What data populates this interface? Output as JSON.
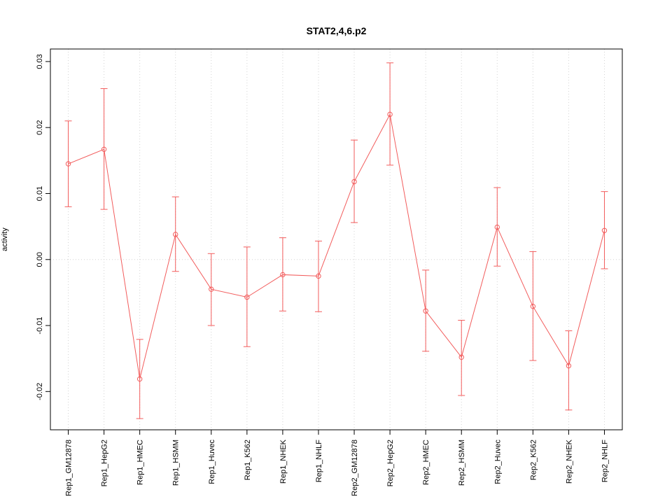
{
  "chart_data": {
    "type": "line",
    "title": "STAT2,4,6.p2",
    "xlabel": "",
    "ylabel": "activity",
    "ylim": [
      -0.0258,
      0.0319
    ],
    "yticks": [
      -0.02,
      -0.01,
      0.0,
      0.01,
      0.02,
      0.03
    ],
    "grid": {
      "vertical_dotted_at_categories": true,
      "horizontal_dotted_at_zero": true
    },
    "legend_position": "none",
    "categories": [
      "Rep1_GM12878",
      "Rep1_HepG2",
      "Rep1_HMEC",
      "Rep1_HSMM",
      "Rep1_Huvec",
      "Rep1_K562",
      "Rep1_NHEK",
      "Rep1_NHLF",
      "Rep2_GM12878",
      "Rep2_HepG2",
      "Rep2_HMEC",
      "Rep2_HSMM",
      "Rep2_Huvec",
      "Rep2_K562",
      "Rep2_NHEK",
      "Rep2_NHLF"
    ],
    "series": [
      {
        "name": "activity",
        "marker": "open-circle",
        "values": [
          0.0145,
          0.0167,
          -0.0181,
          0.0038,
          -0.0045,
          -0.0057,
          -0.0023,
          -0.0025,
          0.0118,
          0.022,
          -0.0078,
          -0.0148,
          0.0049,
          -0.0071,
          -0.0161,
          0.0044
        ],
        "error_upper": [
          0.021,
          0.0259,
          -0.0121,
          0.0095,
          0.0009,
          0.0019,
          0.0033,
          0.0028,
          0.0181,
          0.0298,
          -0.0016,
          -0.0092,
          0.0109,
          0.0012,
          -0.0108,
          0.0103
        ],
        "error_lower": [
          0.008,
          0.0076,
          -0.0241,
          -0.0018,
          -0.01,
          -0.0132,
          -0.0078,
          -0.0079,
          0.0056,
          0.0143,
          -0.0139,
          -0.0206,
          -0.001,
          -0.0153,
          -0.0228,
          -0.0014
        ]
      }
    ],
    "colors": {
      "series": "#f25c5c",
      "grid": "#d3d3d3",
      "axis": "#000000",
      "background": "#ffffff"
    }
  }
}
